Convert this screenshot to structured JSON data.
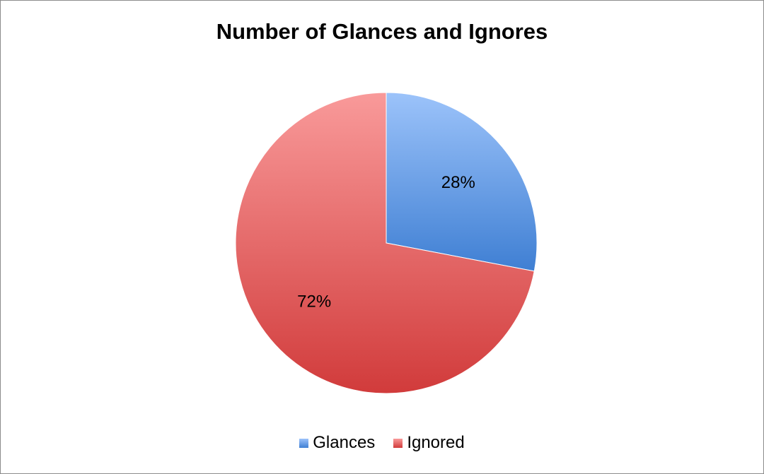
{
  "chart_data": {
    "type": "pie",
    "title": "Number of Glances and Ignores",
    "categories": [
      "Glances",
      "Ignored"
    ],
    "values": [
      28,
      72
    ],
    "value_labels": [
      "28%",
      "72%"
    ],
    "colors": {
      "Glances": {
        "light": "#9cc3fa",
        "dark": "#3f7fd3"
      },
      "Ignored": {
        "light": "#f99a9a",
        "dark": "#d13b3b"
      }
    },
    "start_angle": "12 o'clock",
    "direction": "clockwise",
    "legend": "bottom"
  }
}
